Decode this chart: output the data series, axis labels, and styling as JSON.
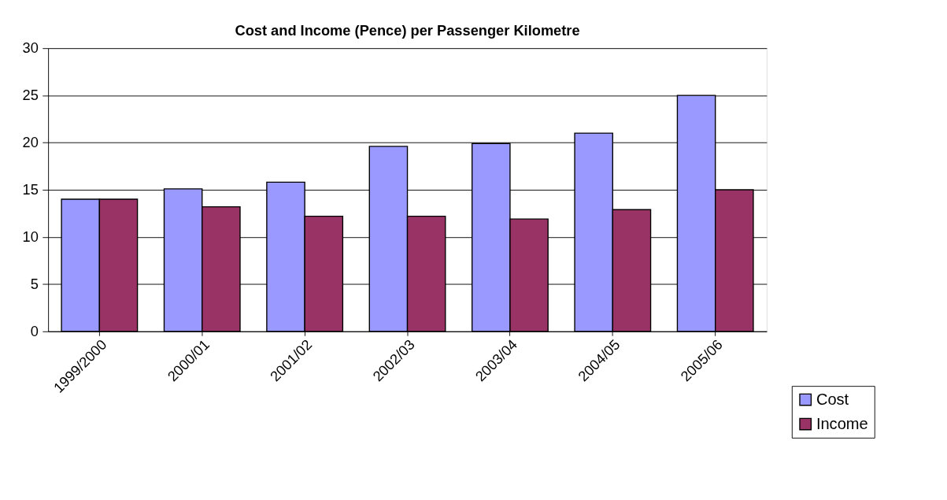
{
  "chart_data": {
    "type": "bar",
    "title": "Cost and Income (Pence) per Passenger Kilometre",
    "categories": [
      "1999/2000",
      "2000/01",
      "2001/02",
      "2002/03",
      "2003/04",
      "2004/05",
      "2005/06"
    ],
    "series": [
      {
        "name": "Cost",
        "color": "#9999ff",
        "values": [
          14.0,
          15.1,
          15.8,
          19.6,
          19.9,
          21.0,
          25.0
        ]
      },
      {
        "name": "Income",
        "color": "#993366",
        "values": [
          14.0,
          13.2,
          12.2,
          12.2,
          11.9,
          12.9,
          15.0
        ]
      }
    ],
    "ylim": [
      0,
      30
    ],
    "yticks": [
      0,
      5,
      10,
      15,
      20,
      25,
      30
    ],
    "grid": "y",
    "legend": "bottom right"
  }
}
